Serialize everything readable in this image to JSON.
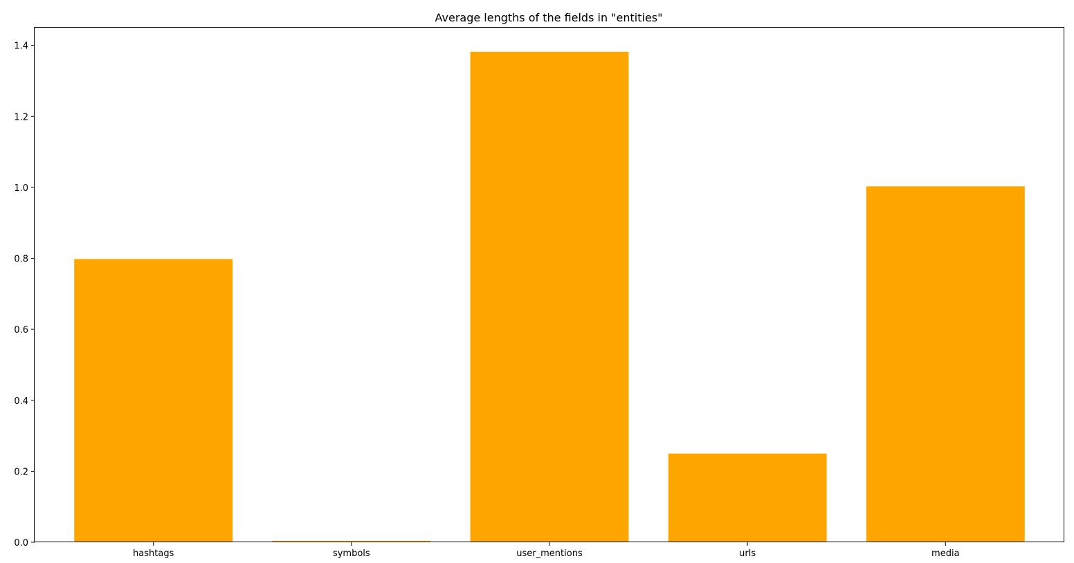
{
  "chart_data": {
    "type": "bar",
    "title": "Average lengths of the fields in \"entities\"",
    "xlabel": "",
    "ylabel": "",
    "categories": [
      "hashtags",
      "symbols",
      "user_mentions",
      "urls",
      "media"
    ],
    "values": [
      0.798,
      0.004,
      1.382,
      0.25,
      1.003
    ],
    "ylim": [
      0,
      1.45
    ],
    "yticks": [
      0.0,
      0.2,
      0.4,
      0.6,
      0.8,
      1.0,
      1.2,
      1.4
    ],
    "ytick_labels": [
      "0.0",
      "0.2",
      "0.4",
      "0.6",
      "0.8",
      "1.0",
      "1.2",
      "1.4"
    ],
    "bar_color": "#ffa500",
    "grid": false,
    "legend": "none"
  }
}
